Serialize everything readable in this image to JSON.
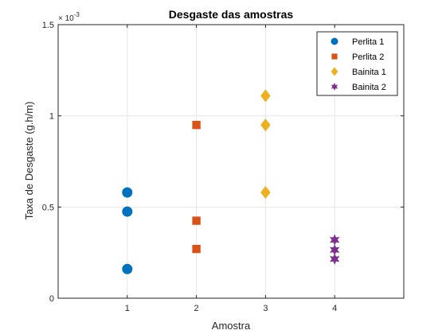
{
  "chart_data": {
    "type": "scatter",
    "title": "Desgaste das amostras",
    "xlabel": "Amostra",
    "ylabel": "Taxa de Desgaste (g.h/m)",
    "y_exponent_base": "× 10",
    "y_exponent_power": "-3",
    "xlim": [
      0,
      5
    ],
    "ylim": [
      0,
      1.5
    ],
    "xticks": [
      1,
      2,
      3,
      4
    ],
    "xtick_labels": [
      "1",
      "2",
      "3",
      "4"
    ],
    "yticks": [
      0,
      0.5,
      1,
      1.5
    ],
    "ytick_labels": [
      "0",
      "0.5",
      "1",
      "1.5"
    ],
    "grid": true,
    "legend_position": "top-right",
    "series": [
      {
        "name": "Perlita 1",
        "marker": "circle",
        "color": "#0072BD",
        "x": [
          1,
          1,
          1
        ],
        "y": [
          0.58,
          0.475,
          0.16
        ]
      },
      {
        "name": "Perlita 2",
        "marker": "square",
        "color": "#D95319",
        "x": [
          2,
          2,
          2
        ],
        "y": [
          0.95,
          0.425,
          0.27
        ]
      },
      {
        "name": "Bainita 1",
        "marker": "diamond",
        "color": "#EDB120",
        "x": [
          3,
          3,
          3
        ],
        "y": [
          1.11,
          0.95,
          0.58
        ]
      },
      {
        "name": "Bainita 2",
        "marker": "hexagram",
        "color": "#7E2F8E",
        "x": [
          4,
          4,
          4
        ],
        "y": [
          0.32,
          0.265,
          0.215
        ]
      }
    ]
  }
}
